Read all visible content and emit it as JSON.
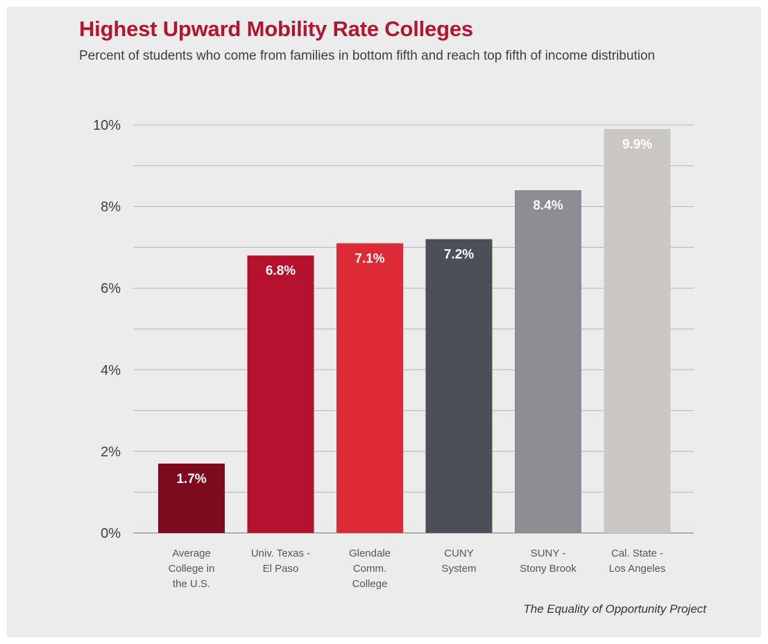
{
  "chart_data": {
    "type": "bar",
    "title": "Highest Upward Mobility Rate Colleges",
    "subtitle": "Percent of students who come from families in bottom fifth and reach top fifth of income distribution",
    "source": "The Equality of Opportunity Project",
    "categories": [
      [
        "Average",
        "College in",
        "the U.S."
      ],
      [
        "Univ. Texas -",
        "El Paso"
      ],
      [
        "Glendale",
        "Comm.",
        "College"
      ],
      [
        "CUNY",
        "System"
      ],
      [
        "SUNY -",
        "Stony Brook"
      ],
      [
        "Cal. State -",
        "Los Angeles"
      ]
    ],
    "values": [
      1.7,
      6.8,
      7.1,
      7.2,
      8.4,
      9.9
    ],
    "value_labels": [
      "1.7%",
      "6.8%",
      "7.1%",
      "7.2%",
      "8.4%",
      "9.9%"
    ],
    "bar_colors": [
      "#7d0a1f",
      "#b5112f",
      "#de2a36",
      "#4c4e58",
      "#8d8c91",
      "#c9c8c6"
    ],
    "ylim": [
      0,
      10
    ],
    "yticks": [
      0,
      2,
      4,
      6,
      8,
      10
    ],
    "ytick_labels": [
      "0%",
      "2%",
      "4%",
      "6%",
      "8%",
      "10%"
    ],
    "grid": true,
    "xlabel": "",
    "ylabel": ""
  }
}
